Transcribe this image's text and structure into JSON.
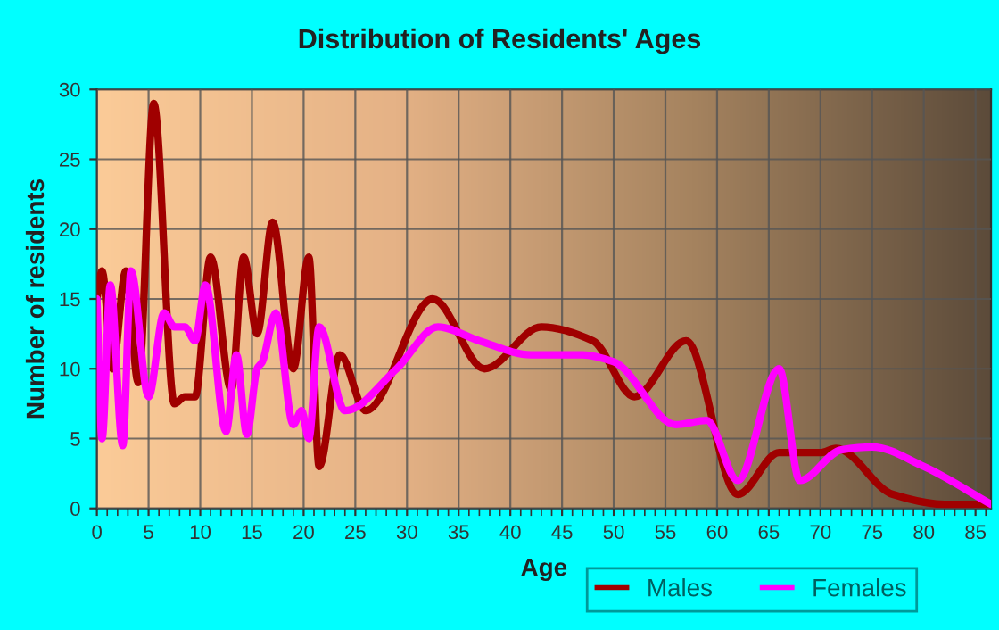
{
  "chart_data": {
    "type": "line",
    "title": "Distribution of Residents' Ages",
    "xlabel": "Age",
    "ylabel": "Number of residents",
    "xlim": [
      0,
      86.5
    ],
    "xticks": [
      0,
      5,
      10,
      15,
      20,
      25,
      30,
      35,
      40,
      45,
      50,
      55,
      60,
      65,
      70,
      75,
      80,
      85
    ],
    "ylim": [
      0,
      30
    ],
    "yticks": [
      0,
      5,
      10,
      15,
      20,
      25,
      30
    ],
    "grid": true,
    "legend": "bottom right",
    "marker": "none",
    "line_style": "solid",
    "series": [
      {
        "name": "Males",
        "color": "#a00000",
        "x": [
          0,
          0.5,
          1.5,
          2.8,
          4,
          5.5,
          7.5,
          8.5,
          9.5,
          11,
          13,
          14.2,
          15.5,
          17,
          19,
          20.5,
          21.5,
          23.5,
          26,
          32.5,
          37.5,
          43,
          48,
          52,
          57,
          62,
          66,
          70,
          71.5,
          77,
          82,
          86.5
        ],
        "values": [
          15,
          17,
          10,
          17,
          9,
          29,
          7.5,
          8,
          8,
          18,
          8.5,
          18,
          12.5,
          20.5,
          10,
          18,
          3,
          11,
          7,
          15,
          10,
          13,
          12,
          8,
          12,
          1,
          4,
          4,
          4.3,
          1,
          0.3,
          0.3
        ]
      },
      {
        "name": "Females",
        "color": "#ff00ff",
        "x": [
          0,
          0.5,
          1.3,
          2.5,
          3.3,
          5,
          6.5,
          7.5,
          8.5,
          9.5,
          10.5,
          12.5,
          13.5,
          14.5,
          15.5,
          16,
          17.3,
          19,
          19.8,
          20.5,
          21.5,
          24,
          29,
          33,
          37,
          42,
          47,
          50,
          56,
          59,
          62,
          66,
          68,
          72,
          75,
          80,
          86.5
        ],
        "values": [
          15,
          5,
          16,
          4.5,
          17,
          8,
          14,
          13,
          13,
          12,
          16,
          5.5,
          11,
          5.3,
          10,
          10.5,
          14,
          6,
          7,
          5,
          13,
          7,
          10,
          13,
          12,
          11,
          11,
          10.5,
          6,
          6.3,
          2,
          10,
          2,
          4.2,
          4.4,
          3,
          0.3
        ]
      }
    ]
  }
}
